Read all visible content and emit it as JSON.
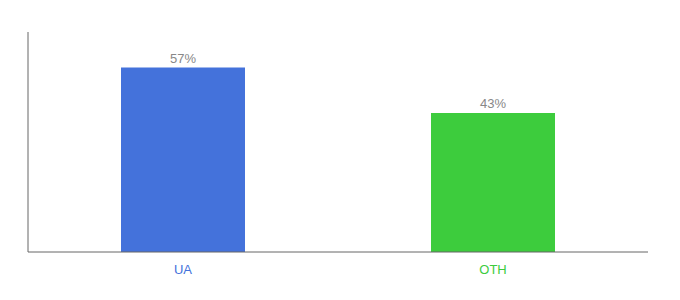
{
  "chart_data": {
    "type": "bar",
    "categories": [
      "UA",
      "OTH"
    ],
    "values": [
      57,
      43
    ],
    "value_labels": [
      "57%",
      "43%"
    ],
    "colors": [
      "#4472db",
      "#3dcc3d"
    ],
    "ylim": [
      0,
      68
    ],
    "data_labels": true,
    "tick_labels": "x",
    "grid": false
  }
}
